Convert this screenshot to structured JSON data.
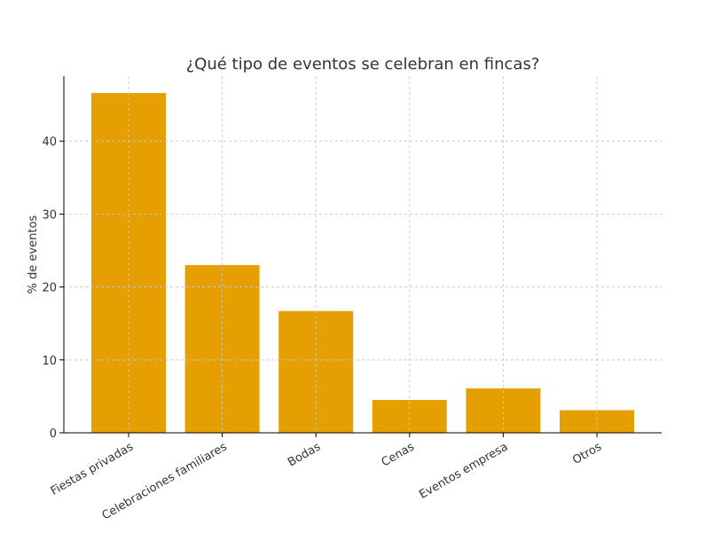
{
  "chart_data": {
    "type": "bar",
    "title": "¿Qué tipo de eventos se celebran en fincas?",
    "xlabel": "",
    "ylabel": "% de eventos",
    "categories": [
      "Fiestas privadas",
      "Celebraciones familiares",
      "Bodas",
      "Cenas",
      "Eventos empresa",
      "Otros"
    ],
    "values": [
      46.6,
      23.0,
      16.7,
      4.5,
      6.1,
      3.1
    ],
    "ylim": [
      0,
      48.9
    ],
    "yticks": [
      0,
      10,
      20,
      30,
      40
    ],
    "grid": true,
    "bar_color": "#E69F00"
  }
}
